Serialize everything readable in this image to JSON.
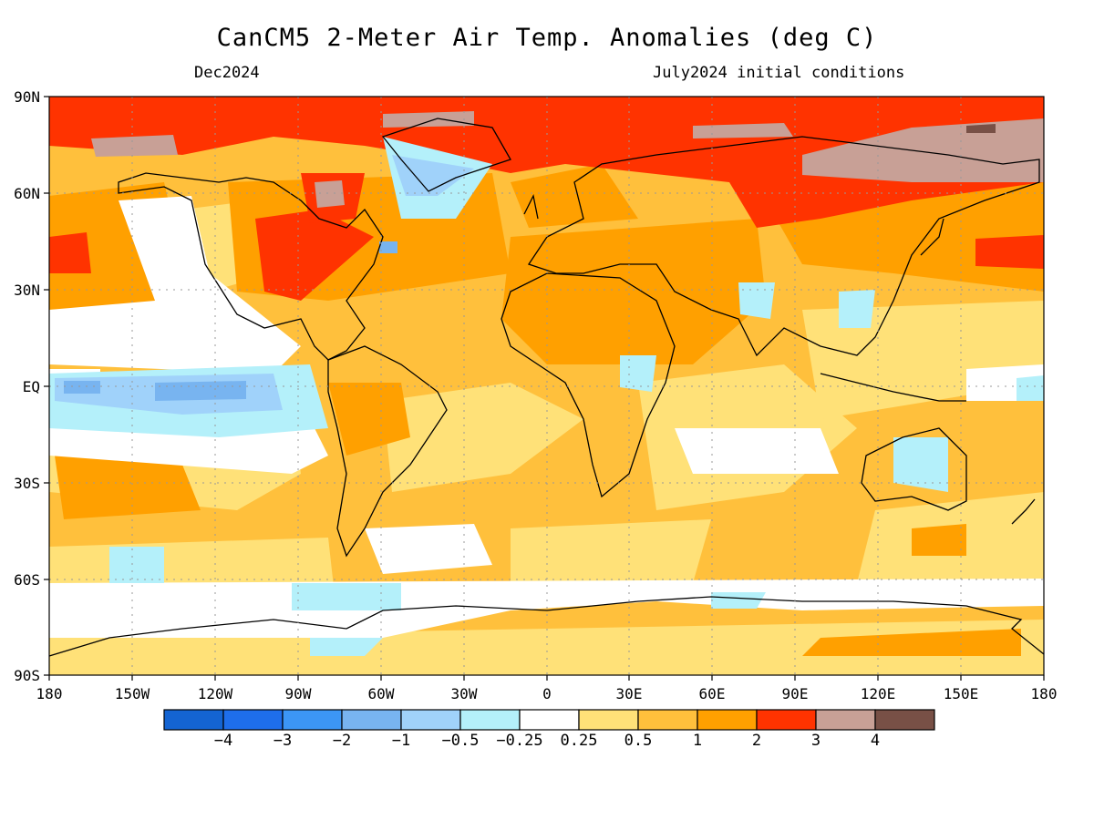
{
  "title": "CanCM5 2-Meter Air Temp. Anomalies (deg C)",
  "valid_month": "Dec2024",
  "initial_conditions": "July2024 initial conditions",
  "lat_labels": [
    "90N",
    "60N",
    "30N",
    "EQ",
    "30S",
    "60S",
    "90S"
  ],
  "lon_labels": [
    "180",
    "150W",
    "120W",
    "90W",
    "60W",
    "30W",
    "0",
    "30E",
    "60E",
    "90E",
    "120E",
    "150E",
    "180"
  ],
  "colorbar": {
    "colors": [
      "#1464d2",
      "#1e6eeb",
      "#3c96f5",
      "#78b4f0",
      "#a0d2fa",
      "#b4f0fa",
      "#ffffff",
      "#ffe178",
      "#ffc03c",
      "#ffa000",
      "#ff3300",
      "#c8a096",
      "#785046"
    ],
    "labels": [
      "-4",
      "-3",
      "-2",
      "-1",
      "-0.5",
      "-0.25",
      "0.25",
      "0.5",
      "1",
      "2",
      "3",
      "4"
    ]
  },
  "colors": {
    "background": "#ffffff",
    "grid": "#999999"
  }
}
